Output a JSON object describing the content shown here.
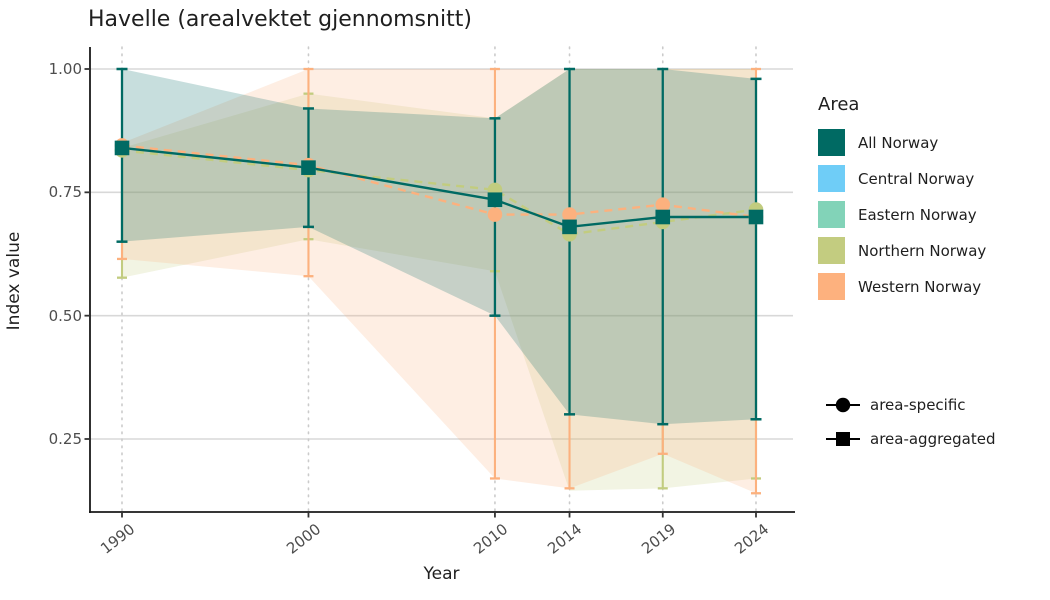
{
  "title": "Havelle (arealvektet gjennomsnitt)",
  "axes": {
    "x_label": "Year",
    "y_label": "Index value",
    "x_tick_labels": [
      "1990",
      "2000",
      "2010",
      "2014",
      "2019",
      "2024"
    ],
    "y_tick_labels": [
      "1.00",
      "0.75",
      "0.50",
      "0.25"
    ]
  },
  "legend": {
    "title": "Area",
    "items": [
      {
        "label": "All Norway",
        "color": "#006a63"
      },
      {
        "label": "Central Norway",
        "color": "#6fcdf7"
      },
      {
        "label": "Eastern Norway",
        "color": "#82d3b8"
      },
      {
        "label": "Northern Norway",
        "color": "#c3cc80"
      },
      {
        "label": "Western Norway",
        "color": "#fdb17e"
      }
    ]
  },
  "shape_legend": [
    {
      "label": "area-specific",
      "shape": "circle"
    },
    {
      "label": "area-aggregated",
      "shape": "square"
    }
  ],
  "chart_data": {
    "type": "line",
    "title": "Havelle (arealvektet gjennomsnitt)",
    "xlabel": "Year",
    "ylabel": "Index value",
    "x": [
      1990,
      2000,
      2010,
      2014,
      2019,
      2024
    ],
    "xlim": [
      1988.3,
      2026
    ],
    "ylim": [
      0.1,
      1.045
    ],
    "yticks": [
      1.0,
      0.75,
      0.5,
      0.25
    ],
    "grid": {
      "horizontal": "solid",
      "vertical": "dotted"
    },
    "legend_position": "right",
    "ribbon_alpha": 0.22,
    "series": [
      {
        "name": "All Norway",
        "role": "area-aggregated",
        "color": "#006a63",
        "line": "solid",
        "marker": "square",
        "values": [
          0.84,
          0.8,
          0.735,
          0.68,
          0.7,
          0.7
        ],
        "ribbon_lower": [
          0.65,
          0.68,
          0.5,
          0.3,
          0.28,
          0.29
        ],
        "ribbon_upper": [
          1.0,
          0.92,
          0.9,
          1.0,
          1.0,
          0.98
        ],
        "bar_lower": [
          0.65,
          0.68,
          0.5,
          0.3,
          0.28,
          0.29
        ],
        "bar_upper": [
          1.0,
          0.92,
          0.9,
          1.0,
          1.0,
          0.98
        ]
      },
      {
        "name": "Northern Norway",
        "role": "area-specific",
        "color": "#c2cc7f",
        "line": "dashed",
        "marker": "circle",
        "values": [
          0.835,
          0.795,
          0.755,
          0.665,
          0.69,
          0.715
        ],
        "ribbon_lower": [
          0.577,
          0.655,
          0.59,
          0.145,
          0.15,
          0.17
        ],
        "ribbon_upper": [
          0.84,
          0.95,
          0.9,
          1.0,
          1.0,
          1.0
        ],
        "bar_lower": [
          0.577,
          0.655,
          0.59,
          0.665,
          0.15,
          0.17
        ],
        "bar_upper": [
          0.835,
          0.95,
          0.755,
          0.665,
          0.69,
          0.715
        ]
      },
      {
        "name": "Western Norway",
        "role": "area-specific",
        "color": "#fcb17e",
        "line": "dashed",
        "marker": "circle",
        "values": [
          0.845,
          0.805,
          0.705,
          0.705,
          0.725,
          0.7
        ],
        "ribbon_lower": [
          0.615,
          0.58,
          0.17,
          0.15,
          0.22,
          0.14
        ],
        "ribbon_upper": [
          0.85,
          1.0,
          1.0,
          1.0,
          1.0,
          1.0
        ],
        "bar_lower": [
          0.615,
          0.58,
          0.17,
          0.15,
          0.22,
          0.14
        ],
        "bar_upper": [
          0.845,
          1.0,
          1.0,
          0.705,
          0.725,
          1.0
        ]
      }
    ]
  }
}
